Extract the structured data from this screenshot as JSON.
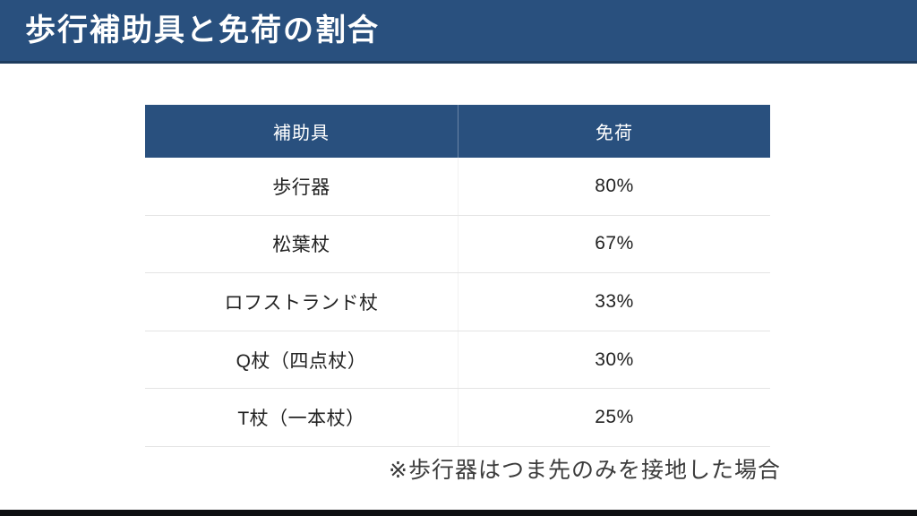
{
  "slide": {
    "title": "歩行補助具と免荷の割合",
    "note": "※歩行器はつま先のみを接地した場合"
  },
  "colors": {
    "accent_navy": "#29507E",
    "header_border": "#1E3C5E",
    "row_border": "#E4E4E4",
    "footer_bar": "#0E0F12"
  },
  "table": {
    "headers": [
      "補助具",
      "免荷"
    ],
    "rows": [
      {
        "aid": "歩行器",
        "offload": "80%"
      },
      {
        "aid": "松葉杖",
        "offload": "67%"
      },
      {
        "aid": "ロフストランド杖",
        "offload": "33%"
      },
      {
        "aid": "Q杖（四点杖）",
        "offload": "30%"
      },
      {
        "aid": "T杖（一本杖）",
        "offload": "25%"
      }
    ]
  }
}
